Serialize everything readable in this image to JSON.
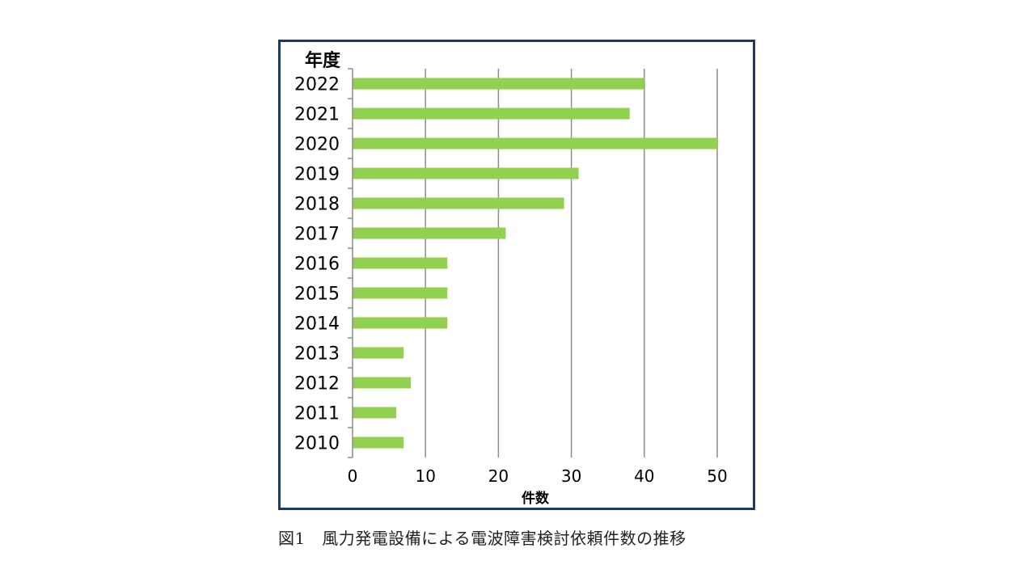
{
  "caption": "図1　風力発電設備による電波障害検討依頼件数の推移",
  "chart_data": {
    "type": "bar",
    "orientation": "horizontal",
    "ylabel": "年度",
    "xlabel": "件数",
    "categories": [
      "2022",
      "2021",
      "2020",
      "2019",
      "2018",
      "2017",
      "2016",
      "2015",
      "2014",
      "2013",
      "2012",
      "2011",
      "2010"
    ],
    "values": [
      40,
      38,
      50,
      31,
      29,
      21,
      13,
      13,
      13,
      7,
      8,
      6,
      7
    ],
    "xlim": [
      0,
      50
    ],
    "xticks": [
      0,
      10,
      20,
      30,
      40,
      50
    ],
    "grid": "vertical",
    "legend": "none",
    "bar_color": "#92d050",
    "frame_color": "#1f3864"
  }
}
